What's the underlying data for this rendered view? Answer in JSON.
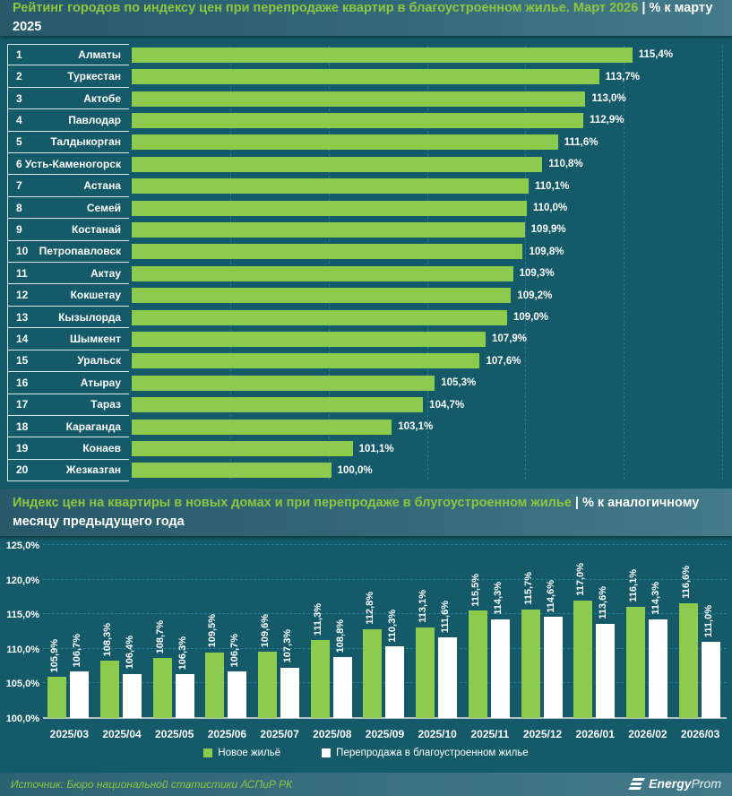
{
  "page": {
    "bg": "#145a68",
    "accent_green": "#8dc63f",
    "bar_green": "#8ccb4e",
    "pipe": "|"
  },
  "header1": {
    "title": "Рейтинг городов по индексу цен при перепродаже квартир в благоустроенном жилье. Март 2026",
    "subtitle": "% к марту 2025"
  },
  "header2": {
    "title": "Индекс цен на квартиры в новых домах и при перепродаже в блугоустроенном жилье",
    "subtitle": "% к аналогичному месяцу предыдущего года"
  },
  "legend": {
    "items": [
      {
        "label": "Новое жильё",
        "color": "#8ccb4e"
      },
      {
        "label": "Перепродажа в благоустроенном жилье",
        "color": "#ffffff"
      }
    ]
  },
  "footer": {
    "source": "Источник: Бюро национальной статистики АСПиР РК",
    "logo_bold": "Energy",
    "logo_light": "Prom"
  },
  "chart_data": [
    {
      "type": "bar",
      "orientation": "horizontal",
      "title": "Рейтинг городов по индексу цен при перепродаже квартир в благоустроенном жилье. Март 2026",
      "xlabel": "% к марту 2025",
      "ranks": [
        1,
        2,
        3,
        4,
        5,
        6,
        7,
        8,
        9,
        10,
        11,
        12,
        13,
        14,
        15,
        16,
        17,
        18,
        19,
        20
      ],
      "categories": [
        "Алматы",
        "Туркестан",
        "Актобе",
        "Павлодар",
        "Талдыкорган",
        "Усть-Каменогорск",
        "Астана",
        "Семей",
        "Костанай",
        "Петропавловск",
        "Актау",
        "Кокшетау",
        "Кызылорда",
        "Шымкент",
        "Уральск",
        "Атырау",
        "Тараз",
        "Караганда",
        "Конаев",
        "Жезказган"
      ],
      "values": [
        115.4,
        113.7,
        113.0,
        112.9,
        111.6,
        110.8,
        110.1,
        110.0,
        109.9,
        109.8,
        109.3,
        109.2,
        109.0,
        107.9,
        107.6,
        105.3,
        104.7,
        103.1,
        101.1,
        100.0
      ],
      "labels": [
        "115,4%",
        "113,7%",
        "113,0%",
        "112,9%",
        "111,6%",
        "110,8%",
        "110,1%",
        "110,0%",
        "109,9%",
        "109,8%",
        "109,3%",
        "109,2%",
        "109,0%",
        "107,9%",
        "107,6%",
        "105,3%",
        "104,7%",
        "103,1%",
        "101,1%",
        "100,0%"
      ],
      "xlim": [
        89.8,
        120.5
      ],
      "gridlines": [
        95,
        100,
        105,
        110,
        115,
        120
      ],
      "grid": "dashed-vertical",
      "bar_color": "#8ccb4e"
    },
    {
      "type": "bar",
      "orientation": "vertical-grouped",
      "title": "Индекс цен на квартиры в новых домах и при перепродаже в блугоустроенном жилье",
      "ylabel": "% к аналогичному месяцу предыдущего года",
      "categories": [
        "2025/03",
        "2025/04",
        "2025/05",
        "2025/06",
        "2025/07",
        "2025/08",
        "2025/09",
        "2025/10",
        "2025/11",
        "2025/12",
        "2026/01",
        "2026/02",
        "2026/03"
      ],
      "series": [
        {
          "name": "Новое жильё",
          "color": "#8ccb4e",
          "values": [
            105.9,
            108.3,
            108.7,
            109.5,
            109.6,
            111.3,
            112.8,
            113.1,
            115.5,
            115.7,
            117.0,
            116.1,
            116.6
          ],
          "labels": [
            "105,9%",
            "108,3%",
            "108,7%",
            "109,5%",
            "109,6%",
            "111,3%",
            "112,8%",
            "113,1%",
            "115,5%",
            "115,7%",
            "117,0%",
            "116,1%",
            "116,6%"
          ]
        },
        {
          "name": "Перепродажа в благоустроенном жилье",
          "color": "#ffffff",
          "values": [
            106.7,
            106.4,
            106.3,
            106.7,
            107.3,
            108.8,
            110.3,
            111.6,
            114.3,
            114.6,
            113.6,
            114.3,
            111.0
          ],
          "labels": [
            "106,7%",
            "106,4%",
            "106,3%",
            "106,7%",
            "107,3%",
            "108,8%",
            "110,3%",
            "111,6%",
            "114,3%",
            "114,6%",
            "113,6%",
            "114,3%",
            "111,0%"
          ]
        }
      ],
      "ylim": [
        100,
        125
      ],
      "yticks": [
        {
          "value": 100,
          "label": "100,0%"
        },
        {
          "value": 105,
          "label": "105,0%"
        },
        {
          "value": 110,
          "label": "110,0%"
        },
        {
          "value": 115,
          "label": "115,0%"
        },
        {
          "value": 120,
          "label": "120,0%"
        },
        {
          "value": 125,
          "label": "125,0%"
        }
      ],
      "grid": "dashed-horizontal",
      "legend_position": "bottom-center"
    }
  ]
}
